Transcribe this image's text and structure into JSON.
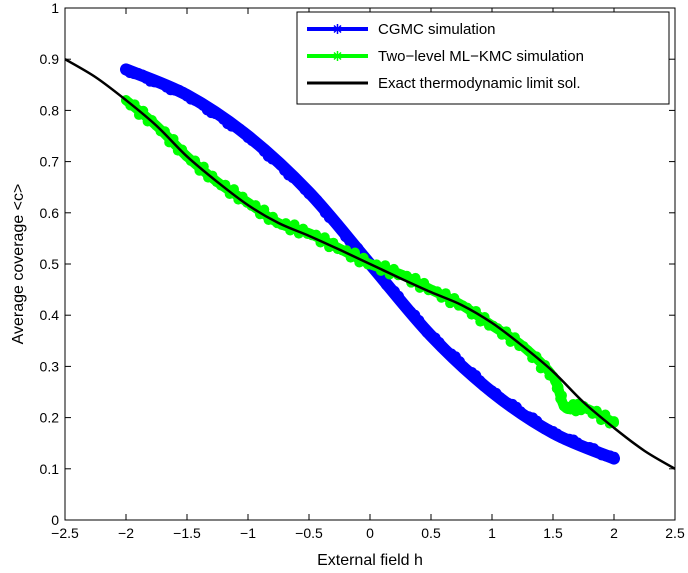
{
  "chart_data": {
    "type": "line",
    "xlabel": "External field h",
    "ylabel": "Average coverage <c>",
    "xlim": [
      -2.5,
      2.5
    ],
    "ylim": [
      0,
      1
    ],
    "x_ticks": [
      -2.5,
      -2,
      -1.5,
      -1,
      -0.5,
      0,
      0.5,
      1,
      1.5,
      2,
      2.5
    ],
    "x_tick_labels": [
      "−2.5",
      "−2",
      "−1.5",
      "−1",
      "−0.5",
      "0",
      "0.5",
      "1",
      "1.5",
      "2",
      "2.5"
    ],
    "y_ticks": [
      0,
      0.1,
      0.2,
      0.3,
      0.4,
      0.5,
      0.6,
      0.7,
      0.8,
      0.9,
      1
    ],
    "y_tick_labels": [
      "0",
      "0.1",
      "0.2",
      "0.3",
      "0.4",
      "0.5",
      "0.6",
      "0.7",
      "0.8",
      "0.9",
      "1"
    ],
    "grid": false,
    "legend_position": "top-right",
    "series": [
      {
        "name": "CGMC simulation",
        "color": "#0000ff",
        "marker": "asterisk",
        "x": [
          -2,
          -1.5,
          -1,
          -0.5,
          0,
          0.5,
          1,
          1.5,
          2
        ],
        "y": [
          0.88,
          0.83,
          0.75,
          0.64,
          0.5,
          0.36,
          0.25,
          0.17,
          0.12
        ]
      },
      {
        "name": "Two−level ML−KMC simulation",
        "color": "#00ff00",
        "marker": "asterisk",
        "x": [
          -2,
          -1.75,
          -1.5,
          -1.25,
          -1,
          -0.75,
          -0.5,
          -0.25,
          0,
          0.25,
          0.5,
          0.75,
          1,
          1.25,
          1.5,
          1.6,
          1.75,
          2
        ],
        "y": [
          0.82,
          0.77,
          0.71,
          0.66,
          0.62,
          0.58,
          0.56,
          0.53,
          0.5,
          0.48,
          0.45,
          0.42,
          0.38,
          0.34,
          0.28,
          0.22,
          0.22,
          0.19
        ]
      },
      {
        "name": "Exact thermodynamic limit sol.",
        "color": "#000000",
        "marker": "none",
        "x": [
          -2.5,
          -2.25,
          -2,
          -1.75,
          -1.5,
          -1.25,
          -1,
          -0.75,
          -0.5,
          -0.25,
          0,
          0.25,
          0.5,
          0.75,
          1,
          1.25,
          1.5,
          1.75,
          2,
          2.25,
          2.5
        ],
        "y": [
          0.9,
          0.865,
          0.82,
          0.77,
          0.71,
          0.66,
          0.615,
          0.58,
          0.555,
          0.528,
          0.5,
          0.472,
          0.445,
          0.42,
          0.385,
          0.34,
          0.29,
          0.23,
          0.18,
          0.135,
          0.1
        ]
      }
    ]
  }
}
